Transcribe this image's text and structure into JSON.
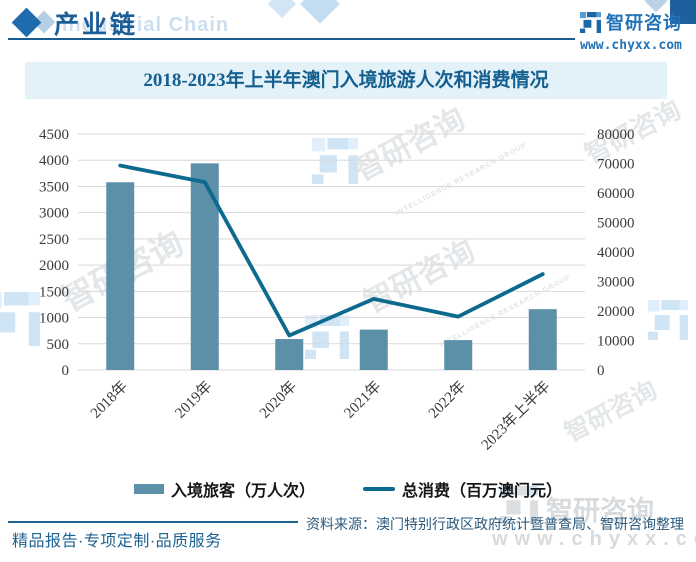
{
  "header": {
    "section_label": "产业链",
    "section_label_en": "Industrial Chain",
    "brand": {
      "name": "智研咨询",
      "url": "www.chyxx.com"
    }
  },
  "chart_data": {
    "type": "bar+line",
    "title": "2018-2023年上半年澳门入境旅游人次和消费情况",
    "categories": [
      "2018年",
      "2019年",
      "2020年",
      "2021年",
      "2022年",
      "2023年上半年"
    ],
    "series": [
      {
        "name": "入境旅客（万人次）",
        "kind": "bar",
        "axis": "left",
        "color": "#5b90a8",
        "values": [
          3580,
          3940,
          590,
          770,
          570,
          1160
        ]
      },
      {
        "name": "总消费（百万澳门元）",
        "kind": "line",
        "axis": "right",
        "color": "#0d6a8f",
        "values": [
          69300,
          63700,
          11700,
          24100,
          18100,
          32500
        ]
      }
    ],
    "left_axis": {
      "min": 0,
      "max": 4500,
      "step": 500
    },
    "right_axis": {
      "min": 0,
      "max": 80000,
      "step": 10000
    },
    "grid": true,
    "legend_position": "bottom"
  },
  "footer": {
    "tagline": "精品报告·专项定制·品质服务",
    "source": "资料来源：澳门特别行政区政府统计暨普查局、智研咨询整理"
  },
  "watermark": {
    "brand": "智研咨询",
    "url_spaced": "www.chyxx.com",
    "group": "INTELLIGENCE RESEARCH GROUP"
  },
  "colors": {
    "accent_blue": "#1d6392",
    "brand_blue": "#2273b8",
    "title_band_bg": "#e3f1f9",
    "grid": "#d9d9d9",
    "bar": "#5b90a8",
    "line": "#0d6a8f"
  }
}
